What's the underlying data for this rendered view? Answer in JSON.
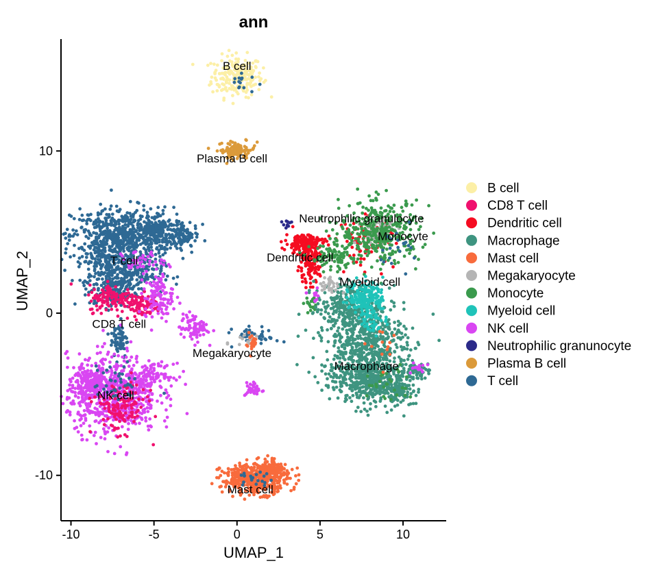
{
  "chart_data": {
    "type": "scatter",
    "title": "ann",
    "xlabel": "UMAP_1",
    "ylabel": "UMAP_2",
    "xlim": [
      -10.6,
      12.6
    ],
    "ylim": [
      -12.8,
      16.9
    ],
    "xticks": [
      -10,
      -5,
      0,
      5,
      10
    ],
    "yticks": [
      -10,
      0,
      10
    ],
    "xtick_labels": [
      "-10",
      "-5",
      "0",
      "5",
      "10"
    ],
    "ytick_labels": [
      "-10",
      "0",
      "10"
    ],
    "grid": false,
    "legend_position": "right",
    "series": [
      {
        "name": "B cell",
        "color": "#FCEFA6"
      },
      {
        "name": "CD8 T cell",
        "color": "#F0116E"
      },
      {
        "name": "Dendritic cell",
        "color": "#F50C21"
      },
      {
        "name": "Macrophage",
        "color": "#3E9480"
      },
      {
        "name": "Mast cell",
        "color": "#F86B3C"
      },
      {
        "name": "Megakaryocyte",
        "color": "#B5B5B5"
      },
      {
        "name": "Monocyte",
        "color": "#3A9A4D"
      },
      {
        "name": "Myeloid cell",
        "color": "#1FC3B9"
      },
      {
        "name": "NK cell",
        "color": "#D946F2"
      },
      {
        "name": "Neutrophilic granunocyte",
        "color": "#2B2A89"
      },
      {
        "name": "Plasma B cell",
        "color": "#DB9A3A"
      },
      {
        "name": "T cell",
        "color": "#2E6994"
      }
    ],
    "cluster_labels": [
      {
        "text": "B cell",
        "x": 0,
        "y": 15.0
      },
      {
        "text": "Plasma B cell",
        "x": -0.3,
        "y": 9.3
      },
      {
        "text": "Neutrophilic granulocyte",
        "x": 7.5,
        "y": 5.6
      },
      {
        "text": "Monocyte",
        "x": 10.0,
        "y": 4.5
      },
      {
        "text": "Dendritic cell",
        "x": 3.8,
        "y": 3.2
      },
      {
        "text": "Myeloid cell",
        "x": 8.0,
        "y": 1.7
      },
      {
        "text": "T cell",
        "x": -6.8,
        "y": 3.0
      },
      {
        "text": "CD8 T cell",
        "x": -7.1,
        "y": -0.9
      },
      {
        "text": "Megakaryocyte",
        "x": -0.3,
        "y": -2.7
      },
      {
        "text": "Macrophage",
        "x": 7.8,
        "y": -3.5
      },
      {
        "text": "NK cell",
        "x": -7.3,
        "y": -5.3
      },
      {
        "text": "Mast cell",
        "x": 0.8,
        "y": -11.1
      }
    ]
  }
}
